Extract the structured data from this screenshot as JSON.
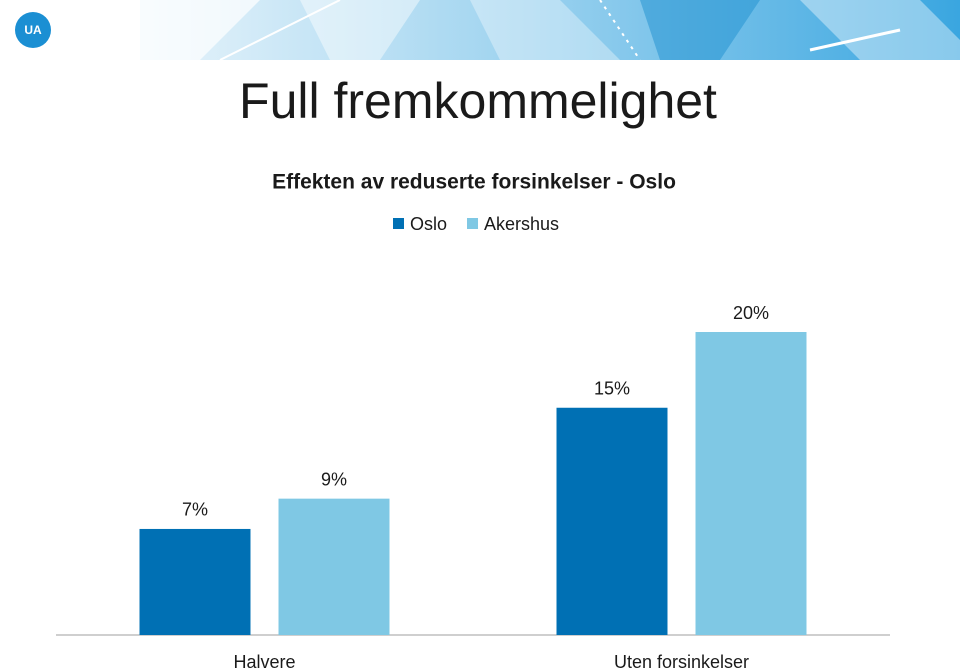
{
  "logo": "UA",
  "chart_data": {
    "type": "bar",
    "title": "Full fremkommelighet",
    "subtitle": "Effekten av reduserte forsinkelser - Oslo",
    "categories": [
      "Halvere",
      "Uten forsinkelser"
    ],
    "series": [
      {
        "name": "Oslo",
        "color": "#0070b4",
        "values": [
          7,
          15
        ],
        "value_labels": [
          "7%",
          "15%"
        ]
      },
      {
        "name": "Akershus",
        "color": "#7fc8e4",
        "values": [
          9,
          20
        ],
        "value_labels": [
          "9%",
          "20%"
        ]
      }
    ],
    "ylim": [
      0,
      20
    ],
    "legend": "top"
  }
}
